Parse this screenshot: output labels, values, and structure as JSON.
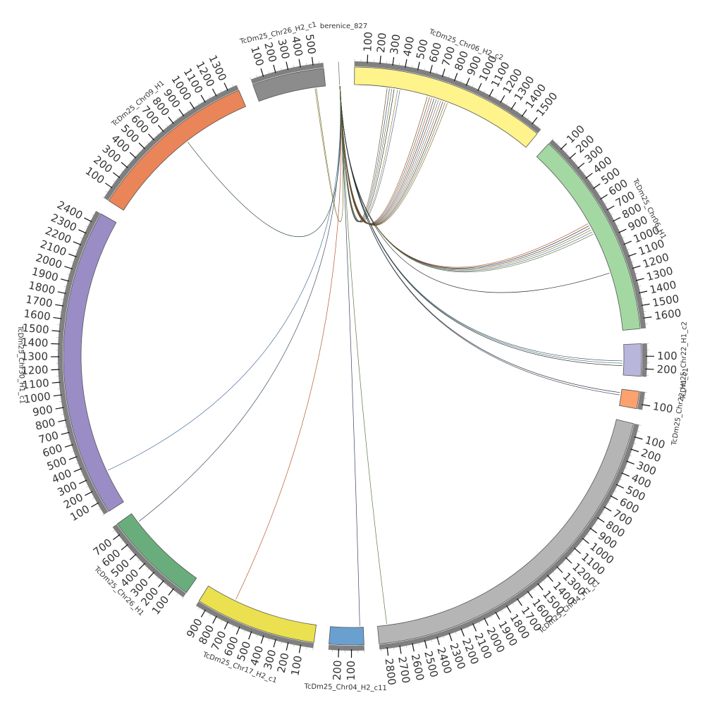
{
  "segments": [
    {
      "id": "TcDm25_Chr06_H2_c2",
      "label": "TcDm25_Chr06_H2_c2",
      "length": 1580,
      "color": "#fff38c"
    },
    {
      "id": "TcDm25_Chr06_H1",
      "label": "TcDm25_Chr06_H1",
      "length": 1680,
      "color": "#a4d8a3"
    },
    {
      "id": "TcDm25_Chr22_H1_c2",
      "label": "TcDm25_Chr22_H1_c2",
      "length": 260,
      "color": "#b9b6dc"
    },
    {
      "id": "TcDm25_Chr22_H1_c1",
      "label": "TcDm25_Chr22_H1_c1",
      "length": 140,
      "color": "#fca26f"
    },
    {
      "id": "TcDm25_Chr04_H1_c1",
      "label": "TcDm25_Chr04_H1_c1",
      "length": 2860,
      "color": "#b5b5b5"
    },
    {
      "id": "TcDm25_Chr04_H2_c11",
      "label": "TcDm25_Chr04_H2_c11",
      "length": 280,
      "color": "#6aa0cf"
    },
    {
      "id": "TcDm25_Chr17_H2_c1",
      "label": "TcDm25_Chr17_H2_c1",
      "length": 980,
      "color": "#ebe04f"
    },
    {
      "id": "TcDm25_Chr26_H1",
      "label": "TcDm25_Chr26_H1",
      "length": 780,
      "color": "#6aad7c"
    },
    {
      "id": "TcDm25_Chr30_H1_c1",
      "label": "TcDm25_Chr30_H1_c1",
      "length": 2490,
      "color": "#9a8dc6"
    },
    {
      "id": "TcDm25_Chr09_H1",
      "label": "TcDm25_Chr09_H1",
      "length": 1380,
      "color": "#e98558"
    },
    {
      "id": "TcDm25_Chr26_H2_c1",
      "label": "TcDm25_Chr26_H2_c1",
      "length": 580,
      "color": "#8c8c8c"
    },
    {
      "id": "berenice_827",
      "label": "berenice_827",
      "length": 5,
      "color": "#ffffff"
    }
  ],
  "links": [
    {
      "from": [
        "berenice_827",
        2
      ],
      "to": [
        "TcDm25_Chr06_H2_c2",
        280
      ],
      "color": "#5a3b1a"
    },
    {
      "from": [
        "berenice_827",
        2
      ],
      "to": [
        "TcDm25_Chr06_H2_c2",
        300
      ],
      "color": "#2b3d55"
    },
    {
      "from": [
        "berenice_827",
        2
      ],
      "to": [
        "TcDm25_Chr06_H2_c2",
        320
      ],
      "color": "#556b2f"
    },
    {
      "from": [
        "berenice_827",
        2
      ],
      "to": [
        "TcDm25_Chr06_H2_c2",
        340
      ],
      "color": "#1a1a1a"
    },
    {
      "from": [
        "berenice_827",
        2
      ],
      "to": [
        "TcDm25_Chr06_H2_c2",
        370
      ],
      "color": "#8b6d1b"
    },
    {
      "from": [
        "berenice_827",
        3
      ],
      "to": [
        "TcDm25_Chr06_H2_c2",
        390
      ],
      "color": "#3a5f8c"
    },
    {
      "from": [
        "berenice_827",
        3
      ],
      "to": [
        "TcDm25_Chr06_H2_c2",
        630
      ],
      "color": "#8b3a1a"
    },
    {
      "from": [
        "berenice_827",
        3
      ],
      "to": [
        "TcDm25_Chr06_H2_c2",
        650
      ],
      "color": "#2f4f2f"
    },
    {
      "from": [
        "berenice_827",
        3
      ],
      "to": [
        "TcDm25_Chr06_H2_c2",
        670
      ],
      "color": "#b0451b"
    },
    {
      "from": [
        "berenice_827",
        3
      ],
      "to": [
        "TcDm25_Chr06_H2_c2",
        690
      ],
      "color": "#1f2f4f"
    },
    {
      "from": [
        "berenice_827",
        3
      ],
      "to": [
        "TcDm25_Chr06_H2_c2",
        710
      ],
      "color": "#6b4226"
    },
    {
      "from": [
        "berenice_827",
        3
      ],
      "to": [
        "TcDm25_Chr06_H2_c2",
        730
      ],
      "color": "#3c6e71"
    },
    {
      "from": [
        "berenice_827",
        3
      ],
      "to": [
        "TcDm25_Chr06_H2_c2",
        750
      ],
      "color": "#a0522d"
    },
    {
      "from": [
        "berenice_827",
        3
      ],
      "to": [
        "TcDm25_Chr06_H2_c2",
        770
      ],
      "color": "#222222"
    },
    {
      "from": [
        "berenice_827",
        3
      ],
      "to": [
        "TcDm25_Chr06_H2_c2",
        790
      ],
      "color": "#4a6d2c"
    },
    {
      "from": [
        "berenice_827",
        3
      ],
      "to": [
        "TcDm25_Chr06_H2_c2",
        810
      ],
      "color": "#8a5a1c"
    },
    {
      "from": [
        "berenice_827",
        3
      ],
      "to": [
        "TcDm25_Chr06_H1",
        720
      ],
      "color": "#b0451b"
    },
    {
      "from": [
        "berenice_827",
        3
      ],
      "to": [
        "TcDm25_Chr06_H1",
        740
      ],
      "color": "#1a1a1a"
    },
    {
      "from": [
        "berenice_827",
        3
      ],
      "to": [
        "TcDm25_Chr06_H1",
        760
      ],
      "color": "#2b3d55"
    },
    {
      "from": [
        "berenice_827",
        3
      ],
      "to": [
        "TcDm25_Chr06_H1",
        780
      ],
      "color": "#8b6d1b"
    },
    {
      "from": [
        "berenice_827",
        3
      ],
      "to": [
        "TcDm25_Chr06_H1",
        800
      ],
      "color": "#3a5f8c"
    },
    {
      "from": [
        "berenice_827",
        3
      ],
      "to": [
        "TcDm25_Chr06_H1",
        820
      ],
      "color": "#556b2f"
    },
    {
      "from": [
        "berenice_827",
        3
      ],
      "to": [
        "TcDm25_Chr06_H1",
        1180
      ],
      "color": "#1a1a1a"
    },
    {
      "from": [
        "berenice_827",
        3
      ],
      "to": [
        "TcDm25_Chr22_H1_c2",
        140
      ],
      "color": "#2b3d55"
    },
    {
      "from": [
        "berenice_827",
        3
      ],
      "to": [
        "TcDm25_Chr22_H1_c2",
        160
      ],
      "color": "#3c6e71"
    },
    {
      "from": [
        "berenice_827",
        3
      ],
      "to": [
        "TcDm25_Chr22_H1_c2",
        180
      ],
      "color": "#1a1a1a"
    },
    {
      "from": [
        "berenice_827",
        3
      ],
      "to": [
        "TcDm25_Chr22_H1_c1",
        30
      ],
      "color": "#1a1a1a"
    },
    {
      "from": [
        "berenice_827",
        3
      ],
      "to": [
        "TcDm25_Chr22_H1_c1",
        50
      ],
      "color": "#2b3d55"
    },
    {
      "from": [
        "berenice_827",
        3
      ],
      "to": [
        "TcDm25_Chr04_H1_c1",
        2780
      ],
      "color": "#4a6d2c"
    },
    {
      "from": [
        "berenice_827",
        2
      ],
      "to": [
        "TcDm25_Chr04_H2_c11",
        30
      ],
      "color": "#1f2f4f"
    },
    {
      "from": [
        "berenice_827",
        2
      ],
      "to": [
        "TcDm25_Chr17_H2_c1",
        720
      ],
      "color": "#b0451b"
    },
    {
      "from": [
        "berenice_827",
        2
      ],
      "to": [
        "TcDm25_Chr26_H1",
        690
      ],
      "color": "#2b3d55"
    },
    {
      "from": [
        "berenice_827",
        2
      ],
      "to": [
        "TcDm25_Chr30_H1_c1",
        300
      ],
      "color": "#3a5f8c"
    },
    {
      "from": [
        "berenice_827",
        2
      ],
      "to": [
        "TcDm25_Chr09_H1",
        800
      ],
      "color": "#1f3a3a"
    },
    {
      "from": [
        "berenice_827",
        2
      ],
      "to": [
        "TcDm25_Chr26_H2_c1",
        490
      ],
      "color": "#8b6d1b"
    },
    {
      "from": [
        "berenice_827",
        2
      ],
      "to": [
        "TcDm25_Chr26_H2_c1",
        500
      ],
      "color": "#556b2f"
    }
  ]
}
